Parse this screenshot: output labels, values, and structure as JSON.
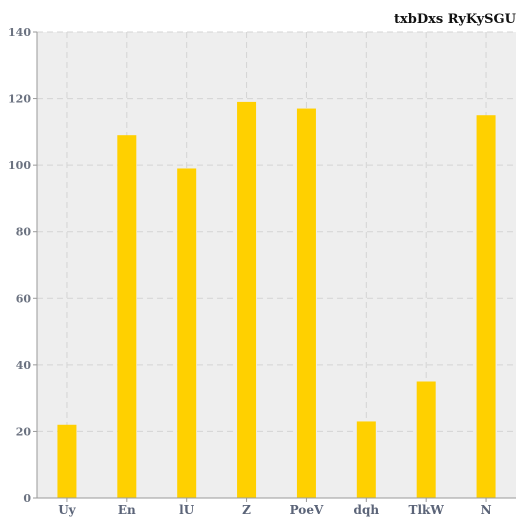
{
  "chart_data": {
    "type": "bar",
    "title": "txbDxs RyKySGU",
    "xlabel": "",
    "ylabel": "",
    "categories": [
      "Uy",
      "En",
      "lU",
      "Z",
      "PoeV",
      "dqh",
      "TlkW",
      "N"
    ],
    "values": [
      22,
      109,
      99,
      119,
      117,
      23,
      35,
      115
    ],
    "ylim": [
      0,
      140
    ],
    "yticks": [
      0,
      20,
      40,
      60,
      80,
      100,
      120,
      140
    ],
    "grid": true,
    "legend": "none",
    "colors": {
      "bar": "#ffd000",
      "plot_background": "#eeeeee",
      "grid": "#d4d4d4",
      "axis": "#9a9a9a"
    }
  }
}
